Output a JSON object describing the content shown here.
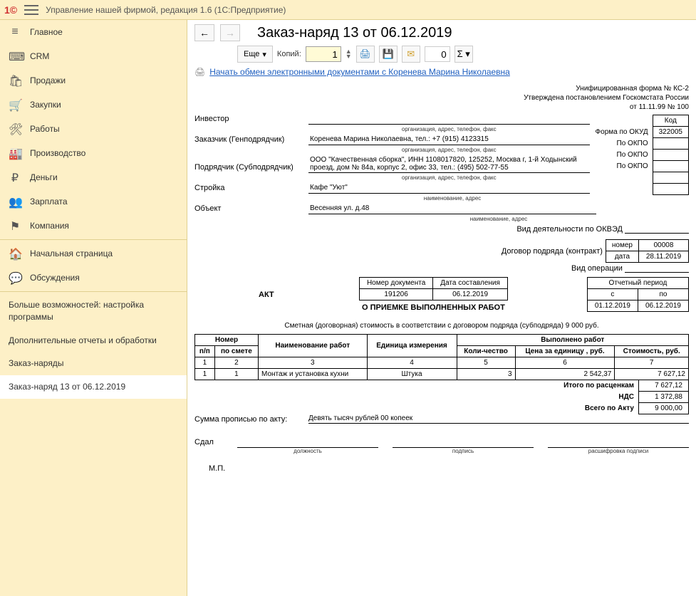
{
  "app": {
    "title": "Управление нашей фирмой, редакция 1.6  (1С:Предприятие)"
  },
  "sidebar": {
    "items": [
      {
        "icon": "≡",
        "label": "Главное"
      },
      {
        "icon": "⌨",
        "label": "CRM"
      },
      {
        "icon": "🛍",
        "label": "Продажи"
      },
      {
        "icon": "🛒",
        "label": "Закупки"
      },
      {
        "icon": "🛠",
        "label": "Работы"
      },
      {
        "icon": "🏭",
        "label": "Производство"
      },
      {
        "icon": "₽",
        "label": "Деньги"
      },
      {
        "icon": "👥",
        "label": "Зарплата"
      },
      {
        "icon": "⚑",
        "label": "Компания"
      }
    ],
    "sub1": [
      {
        "icon": "🏠",
        "label": "Начальная страница"
      },
      {
        "icon": "💬",
        "label": "Обсуждения"
      }
    ],
    "sub2": [
      {
        "label": "Больше возможностей: настройка программы"
      },
      {
        "label": "Дополнительные отчеты и обработки"
      },
      {
        "label": "Заказ-наряды"
      },
      {
        "label": "Заказ-наряд 13 от 06.12.2019",
        "active": true
      }
    ]
  },
  "doc": {
    "title": "Заказ-наряд 13 от 06.12.2019",
    "more_btn": "Еще",
    "copies_label": "Копий:",
    "copies_value": "1",
    "sigma_input": "0",
    "edo_link": "Начать обмен электронными документами с Коренева Марина Николаевна"
  },
  "form": {
    "header_line1": "Унифицированная форма № КС-2",
    "header_line2": "Утверждена постановлением  Госкомстата России",
    "header_line3": "от 11.11.99 № 100",
    "code_header": "Код",
    "okud_label": "Форма по ОКУД",
    "okud_value": "322005",
    "okpo_label": "По ОКПО",
    "investor_label": "Инвестор",
    "investor_value": "",
    "org_sub": "организация, адрес, телефон, факс",
    "customer_label": "Заказчик (Генподрядчик)",
    "customer_value": "Коренева Марина Николаевна,  тел.: +7 (915) 4123315",
    "contractor_label": "Подрядчик (Субподрядчик)",
    "contractor_value": "ООО \"Качественная сборка\",  ИНН 1108017820,  125252, Москва г, 1-й Ходынский проезд, дом № 84а, корпус 2, офис 33,  тел.: (495) 502-77-55",
    "construction_label": "Стройка",
    "construction_value": "Кафе \"Уют\"",
    "name_addr_sub": "наименование, адрес",
    "object_label": "Объект",
    "object_value": "Весенняя ул. д.48",
    "okved_label": "Вид деятельности по ОКВЭД",
    "contract_label": "Договор подряда (контракт)",
    "contract_number_label": "номер",
    "contract_number": "00008",
    "contract_date_label": "дата",
    "contract_date": "28.11.2019",
    "operation_label": "Вид операции",
    "act_doc_num_label": "Номер документа",
    "act_doc_date_label": "Дата составления",
    "act_doc_num": "191206",
    "act_doc_date": "06.12.2019",
    "act_label": "АКТ",
    "act_title": "О ПРИЕМКЕ ВЫПОЛНЕННЫХ РАБОТ",
    "period_title": "Отчетный период",
    "period_from_label": "с",
    "period_to_label": "по",
    "period_from": "01.12.2019",
    "period_to": "06.12.2019",
    "smeta_text": "Сметная (договорная) стоимость в соответствии с договором подряда (субподряда) 9 000 руб.",
    "table": {
      "h_number": "Номер",
      "h_pp": "п/п",
      "h_smeta": "по смете",
      "h_name": "Наименование работ",
      "h_unit": "Единица измерения",
      "h_done": "Выполнено работ",
      "h_qty": "Коли-чество",
      "h_price": "Цена за единицу , руб.",
      "h_cost": "Стоимость, руб.",
      "colnums": [
        "1",
        "2",
        "3",
        "4",
        "5",
        "6",
        "7"
      ],
      "rows": [
        {
          "pp": "1",
          "smeta": "1",
          "name": "Монтаж и установка кухни",
          "unit": "Штука",
          "qty": "3",
          "price": "2 542,37",
          "cost": "7 627,12"
        }
      ]
    },
    "total_rate_label": "Итого по расценкам",
    "total_rate": "7 627,12",
    "vat_label": "НДС",
    "vat": "1 372,88",
    "total_act_label": "Всего по Акту",
    "total_act": "9 000,00",
    "sum_words_label": "Сумма прописью по акту:",
    "sum_words": "Девять тысяч рублей 00 копеек",
    "sdal_label": "Сдал",
    "sign_position": "должность",
    "sign_signature": "подпись",
    "sign_decipher": "расшифровка подписи",
    "mp": "М.П."
  }
}
